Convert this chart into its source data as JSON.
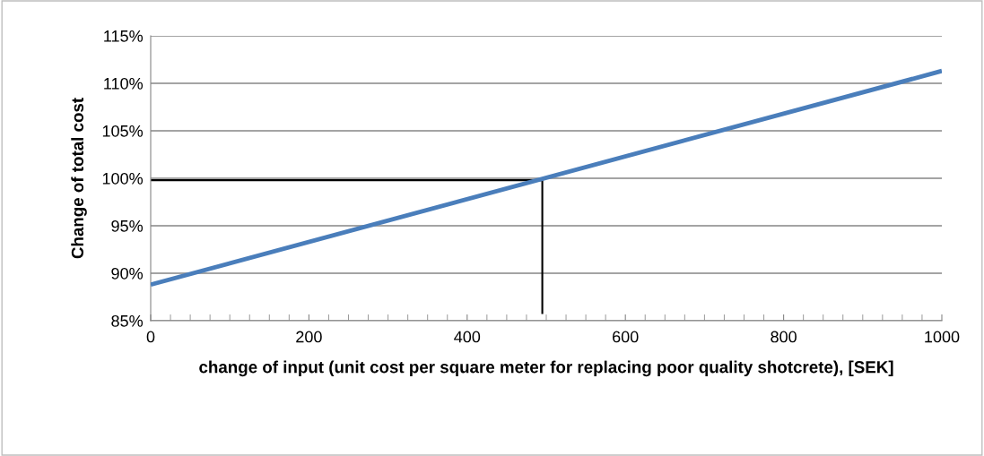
{
  "chart_data": {
    "type": "line",
    "xlabel": "change of input (unit cost per square meter for replacing poor quality shotcrete), [SEK]",
    "ylabel": "Change of total cost",
    "series": [
      {
        "color": "#4a7ebb",
        "x": [
          0,
          1000
        ],
        "values": [
          88.8,
          111.3
        ]
      },
      {
        "color": "#000000",
        "x": [
          0,
          495,
          495
        ],
        "values": [
          99.8,
          99.8,
          85.7
        ]
      }
    ],
    "xlim": [
      0,
      1000
    ],
    "xticks": [
      0,
      200,
      400,
      600,
      800,
      1000
    ],
    "ylim": [
      85,
      115
    ],
    "yticks": [
      {
        "value": 85,
        "label": "85%"
      },
      {
        "value": 90,
        "label": "90%"
      },
      {
        "value": 95,
        "label": "95%"
      },
      {
        "value": 100,
        "label": "100%"
      },
      {
        "value": 105,
        "label": "105%"
      },
      {
        "value": 110,
        "label": "110%"
      },
      {
        "value": 115,
        "label": "115%"
      }
    ],
    "grid": "y",
    "legend": false,
    "marker": "none",
    "line_style": "solid"
  }
}
